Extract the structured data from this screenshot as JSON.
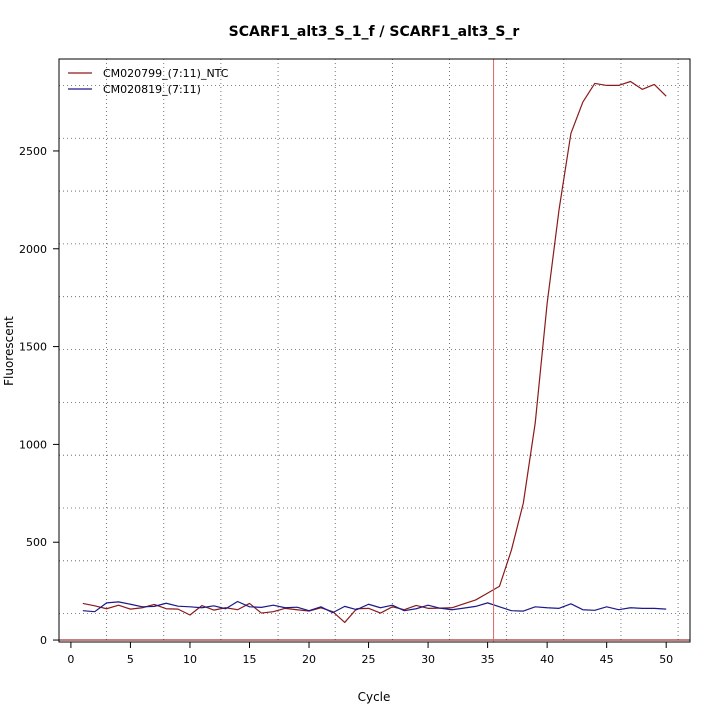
{
  "chart_data": {
    "type": "line",
    "title": "SCARF1_alt3_S_1_f / SCARF1_alt3_S_r",
    "xlabel": "Cycle",
    "ylabel": "Fluorescent",
    "xlim": [
      -1.0,
      52.0
    ],
    "ylim": [
      -10,
      2970
    ],
    "x_ticks": [
      0,
      5,
      10,
      15,
      20,
      25,
      30,
      35,
      40,
      45,
      50
    ],
    "y_ticks": [
      0,
      500,
      1000,
      1500,
      2000,
      2500
    ],
    "x_ticks_text": [
      "0",
      "5",
      "10",
      "15",
      "20",
      "25",
      "30",
      "35",
      "40",
      "45",
      "50"
    ],
    "y_ticks_text": [
      "0",
      "500",
      "1000",
      "1500",
      "2000",
      "2500"
    ],
    "grid": true,
    "legend_position": "top-left",
    "threshold_line": {
      "x": 35.5,
      "color": "#e06666"
    },
    "baseline": {
      "y": 0,
      "color": "#8b0000"
    },
    "x": [
      1,
      2,
      3,
      4,
      5,
      6,
      7,
      8,
      9,
      10,
      11,
      12,
      13,
      14,
      15,
      16,
      17,
      18,
      19,
      20,
      21,
      22,
      23,
      24,
      25,
      26,
      27,
      28,
      29,
      30,
      31,
      32,
      33,
      34,
      35,
      36,
      37,
      38,
      39,
      40,
      41,
      42,
      43,
      44,
      45,
      46,
      47,
      48,
      49,
      50
    ],
    "series": [
      {
        "name": "CM020799_(7:11)_NTC",
        "color": "#8b1a1a",
        "values": [
          187,
          175,
          160,
          178,
          158,
          165,
          182,
          160,
          158,
          128,
          176,
          153,
          165,
          155,
          187,
          138,
          145,
          162,
          155,
          148,
          165,
          145,
          90,
          160,
          162,
          138,
          170,
          155,
          177,
          162,
          163,
          165,
          185,
          205,
          240,
          275,
          460,
          700,
          1110,
          1720,
          2200,
          2590,
          2750,
          2845,
          2835,
          2835,
          2855,
          2815,
          2840,
          2780
        ]
      },
      {
        "name": "CM020819_(7:11)",
        "color": "#1a1a8b",
        "values": [
          150,
          145,
          190,
          195,
          183,
          170,
          172,
          188,
          173,
          170,
          165,
          175,
          160,
          197,
          170,
          167,
          178,
          165,
          168,
          150,
          170,
          140,
          172,
          155,
          183,
          165,
          178,
          150,
          160,
          178,
          163,
          155,
          163,
          172,
          190,
          170,
          150,
          148,
          170,
          165,
          162,
          185,
          155,
          152,
          170,
          155,
          165,
          162,
          162,
          158
        ]
      }
    ]
  }
}
